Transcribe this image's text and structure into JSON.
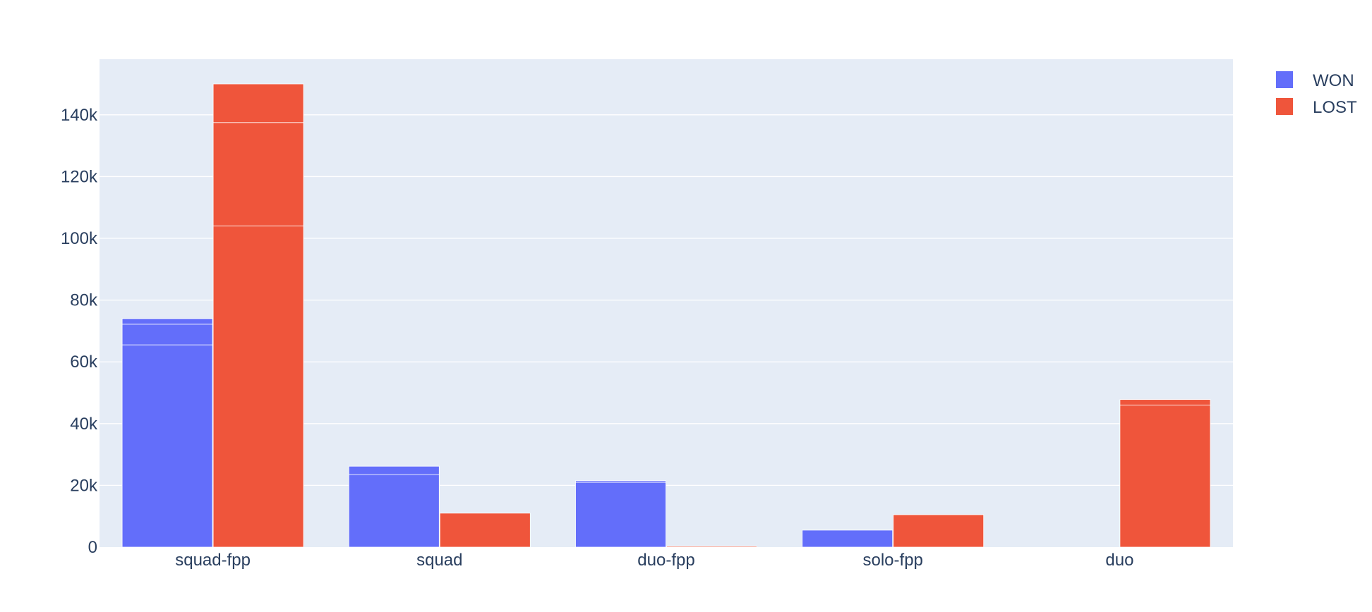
{
  "chart_data": {
    "type": "bar",
    "barmode": "group-stacked",
    "categories": [
      "squad-fpp",
      "squad",
      "duo-fpp",
      "solo-fpp",
      "duo"
    ],
    "ylim": [
      0,
      158000
    ],
    "yticks": [
      0,
      20000,
      40000,
      60000,
      80000,
      100000,
      120000,
      140000
    ],
    "ytick_labels": [
      "0",
      "20k",
      "40k",
      "60k",
      "80k",
      "100k",
      "120k",
      "140k"
    ],
    "grid": true,
    "legend_position": "top-right",
    "colors": {
      "WON": "#636efa",
      "LOST": "#ef553b",
      "plot_bg": "#e5ecf6",
      "grid": "#ffffff",
      "text": "#2a3f5f"
    },
    "series": [
      {
        "name": "WON",
        "segments": [
          [
            65500,
            6700,
            1800
          ],
          [
            23500,
            2700
          ],
          [
            21000,
            500
          ],
          [
            5500
          ],
          []
        ]
      },
      {
        "name": "LOST",
        "segments": [
          [
            104000,
            33500,
            12500
          ],
          [
            11000
          ],
          [
            300
          ],
          [
            10500
          ],
          [
            46000,
            1800
          ]
        ]
      }
    ]
  }
}
